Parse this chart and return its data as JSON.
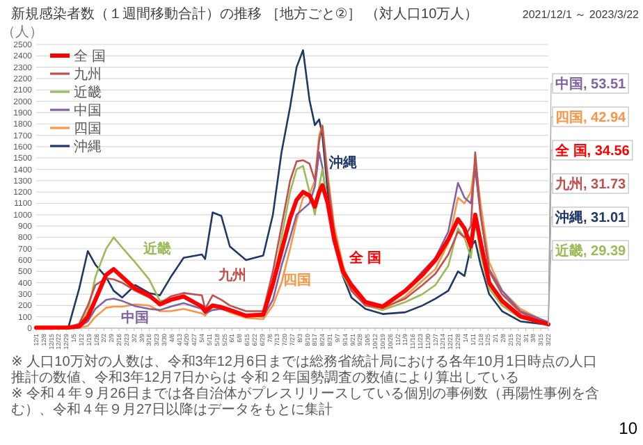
{
  "chart_data": {
    "type": "line",
    "title": "新規感染者数（１週間移動合計）の推移 ［地方ごと②］ （対人口10万人）",
    "subtitle": "2021/12/1 ～ 2023/3/22",
    "ylabel": "（人）",
    "x": [
      "2021-12-01",
      "2021-12-31",
      "2022-01-10",
      "2022-01-18",
      "2022-01-25",
      "2022-02-04",
      "2022-02-11",
      "2022-02-19",
      "2022-03-03",
      "2022-03-16",
      "2022-03-26",
      "2022-04-05",
      "2022-04-17",
      "2022-05-04",
      "2022-05-07",
      "2022-05-14",
      "2022-05-22",
      "2022-05-30",
      "2022-06-14",
      "2022-06-30",
      "2022-07-09",
      "2022-07-17",
      "2022-07-25",
      "2022-07-31",
      "2022-08-06",
      "2022-08-12",
      "2022-08-17",
      "2022-08-21",
      "2022-08-24",
      "2022-08-29",
      "2022-09-04",
      "2022-09-12",
      "2022-09-20",
      "2022-10-03",
      "2022-10-19",
      "2022-11-09",
      "2022-11-25",
      "2022-12-07",
      "2022-12-19",
      "2022-12-28",
      "2023-01-03",
      "2023-01-09",
      "2023-01-13",
      "2023-01-18",
      "2023-01-26",
      "2023-02-07",
      "2023-02-24",
      "2023-03-22"
    ],
    "series": [
      {
        "name": "全 国",
        "color": "#ff0000",
        "values": [
          5,
          6,
          15,
          100,
          250,
          470,
          520,
          450,
          350,
          290,
          210,
          250,
          280,
          190,
          150,
          200,
          185,
          160,
          110,
          120,
          390,
          680,
          970,
          1130,
          1200,
          1170,
          1070,
          1200,
          1260,
          1100,
          780,
          500,
          380,
          230,
          190,
          330,
          470,
          600,
          780,
          960,
          880,
          720,
          1000,
          760,
          400,
          240,
          105,
          34.56
        ]
      },
      {
        "name": "九州",
        "color": "#c0504d",
        "values": [
          5,
          8,
          40,
          200,
          380,
          440,
          430,
          400,
          330,
          270,
          220,
          280,
          310,
          290,
          170,
          290,
          250,
          200,
          150,
          150,
          500,
          900,
          1300,
          1470,
          1480,
          1450,
          1300,
          1650,
          1780,
          1300,
          850,
          520,
          330,
          200,
          180,
          260,
          380,
          480,
          650,
          850,
          800,
          900,
          1550,
          1000,
          500,
          300,
          140,
          31.73
        ]
      },
      {
        "name": "近畿",
        "color": "#9bbb59",
        "values": [
          5,
          5,
          20,
          150,
          450,
          700,
          800,
          710,
          580,
          430,
          240,
          250,
          270,
          200,
          150,
          210,
          190,
          160,
          110,
          100,
          350,
          800,
          1200,
          1400,
          1430,
          1200,
          1000,
          1250,
          1400,
          1100,
          760,
          470,
          330,
          210,
          160,
          230,
          300,
          380,
          550,
          880,
          800,
          620,
          970,
          650,
          350,
          200,
          90,
          29.39
        ]
      },
      {
        "name": "中国",
        "color": "#8064a2",
        "values": [
          5,
          5,
          10,
          60,
          170,
          250,
          260,
          240,
          195,
          170,
          160,
          190,
          220,
          170,
          130,
          160,
          170,
          150,
          120,
          100,
          250,
          550,
          800,
          1000,
          1050,
          1100,
          1250,
          1550,
          1420,
          1050,
          780,
          520,
          330,
          220,
          190,
          330,
          500,
          620,
          850,
          1280,
          1150,
          1100,
          1400,
          1000,
          520,
          330,
          150,
          53.51
        ]
      },
      {
        "name": "四国",
        "color": "#f79646",
        "values": [
          5,
          5,
          5,
          20,
          100,
          180,
          190,
          190,
          210,
          200,
          150,
          150,
          170,
          130,
          110,
          190,
          170,
          140,
          90,
          80,
          200,
          400,
          700,
          950,
          1150,
          1180,
          1300,
          1700,
          1790,
          1350,
          900,
          560,
          350,
          200,
          160,
          280,
          420,
          520,
          750,
          1150,
          1100,
          1200,
          1470,
          1100,
          580,
          330,
          170,
          42.94
        ]
      },
      {
        "name": "沖縄",
        "color": "#1f3864",
        "values": [
          8,
          10,
          350,
          680,
          560,
          450,
          330,
          270,
          380,
          310,
          290,
          450,
          620,
          650,
          610,
          1020,
          990,
          720,
          600,
          640,
          1000,
          1550,
          1950,
          2300,
          2450,
          2010,
          1790,
          1840,
          1700,
          1200,
          820,
          460,
          270,
          170,
          125,
          140,
          200,
          260,
          330,
          500,
          460,
          720,
          770,
          560,
          300,
          150,
          60,
          31.01
        ]
      }
    ],
    "xlim": [
      "2021-12-01",
      "2023-03-22"
    ],
    "ylim": [
      0,
      2500
    ],
    "yticks": [
      0,
      100,
      200,
      300,
      400,
      500,
      600,
      700,
      800,
      900,
      1000,
      1100,
      1200,
      1300,
      1400,
      1500,
      1600,
      1700,
      1800,
      1900,
      2000,
      2100,
      2200,
      2300,
      2400,
      2500
    ],
    "xticks": [
      {
        "value": "2021-12-01",
        "label": "12/1"
      },
      {
        "value": "2021-12-08",
        "label": "12/8"
      },
      {
        "value": "2021-12-15",
        "label": "12/15"
      },
      {
        "value": "2021-12-22",
        "label": "12/22"
      },
      {
        "value": "2021-12-29",
        "label": "12/29"
      },
      {
        "value": "2022-01-05",
        "label": "1/5"
      },
      {
        "value": "2022-01-12",
        "label": "1/12"
      },
      {
        "value": "2022-01-19",
        "label": "1/19"
      },
      {
        "value": "2022-01-26",
        "label": "1/26"
      },
      {
        "value": "2022-02-02",
        "label": "2/2"
      },
      {
        "value": "2022-02-09",
        "label": "2/9"
      },
      {
        "value": "2022-02-16",
        "label": "2/16"
      },
      {
        "value": "2022-02-23",
        "label": "2/23"
      },
      {
        "value": "2022-03-02",
        "label": "3/2"
      },
      {
        "value": "2022-03-09",
        "label": "3/9"
      },
      {
        "value": "2022-03-16",
        "label": "3/16"
      },
      {
        "value": "2022-03-23",
        "label": "3/23"
      },
      {
        "value": "2022-03-30",
        "label": "3/30"
      },
      {
        "value": "2022-04-06",
        "label": "4/6"
      },
      {
        "value": "2022-04-13",
        "label": "4/13"
      },
      {
        "value": "2022-04-20",
        "label": "4/20"
      },
      {
        "value": "2022-04-27",
        "label": "4/27"
      },
      {
        "value": "2022-05-04",
        "label": "5/4"
      },
      {
        "value": "2022-05-11",
        "label": "5/11"
      },
      {
        "value": "2022-05-18",
        "label": "5/18"
      },
      {
        "value": "2022-05-25",
        "label": "5/25"
      },
      {
        "value": "2022-06-01",
        "label": "6/1"
      },
      {
        "value": "2022-06-08",
        "label": "6/8"
      },
      {
        "value": "2022-06-15",
        "label": "6/15"
      },
      {
        "value": "2022-06-22",
        "label": "6/22"
      },
      {
        "value": "2022-06-29",
        "label": "6/29"
      },
      {
        "value": "2022-07-06",
        "label": "7/6"
      },
      {
        "value": "2022-07-13",
        "label": "7/13"
      },
      {
        "value": "2022-07-20",
        "label": "7/20"
      },
      {
        "value": "2022-07-27",
        "label": "7/27"
      },
      {
        "value": "2022-08-03",
        "label": "8/3"
      },
      {
        "value": "2022-08-10",
        "label": "8/10"
      },
      {
        "value": "2022-08-17",
        "label": "8/17"
      },
      {
        "value": "2022-08-24",
        "label": "8/24"
      },
      {
        "value": "2022-08-31",
        "label": "8/31"
      },
      {
        "value": "2022-09-07",
        "label": "9/7"
      },
      {
        "value": "2022-09-14",
        "label": "9/14"
      },
      {
        "value": "2022-09-21",
        "label": "9/21"
      },
      {
        "value": "2022-09-28",
        "label": "9/28"
      },
      {
        "value": "2022-10-05",
        "label": "10/5"
      },
      {
        "value": "2022-10-12",
        "label": "10/12"
      },
      {
        "value": "2022-10-19",
        "label": "10/19"
      },
      {
        "value": "2022-10-26",
        "label": "10/26"
      },
      {
        "value": "2022-11-02",
        "label": "11/2"
      },
      {
        "value": "2022-11-09",
        "label": "11/9"
      },
      {
        "value": "2022-11-16",
        "label": "11/16"
      },
      {
        "value": "2022-11-23",
        "label": "11/23"
      },
      {
        "value": "2022-11-30",
        "label": "11/30"
      },
      {
        "value": "2022-12-07",
        "label": "12/7"
      },
      {
        "value": "2022-12-14",
        "label": "12/14"
      },
      {
        "value": "2022-12-21",
        "label": "12/21"
      },
      {
        "value": "2022-12-28",
        "label": "12/28"
      },
      {
        "value": "2023-01-04",
        "label": "1/4"
      },
      {
        "value": "2023-01-11",
        "label": "1/11"
      },
      {
        "value": "2023-01-18",
        "label": "1/18"
      },
      {
        "value": "2023-01-25",
        "label": "1/25"
      },
      {
        "value": "2023-02-01",
        "label": "2/1"
      },
      {
        "value": "2023-02-08",
        "label": "2/8"
      },
      {
        "value": "2023-02-15",
        "label": "2/15"
      },
      {
        "value": "2023-02-22",
        "label": "2/22"
      },
      {
        "value": "2023-03-01",
        "label": "3/1"
      },
      {
        "value": "2023-03-08",
        "label": "3/8"
      },
      {
        "value": "2023-03-15",
        "label": "3/15"
      },
      {
        "value": "2023-03-22",
        "label": "3/22"
      }
    ],
    "grid": "y",
    "legend": "top left",
    "line_style": "solid",
    "marker": "none",
    "annotations": [
      {
        "text": "中国, 53.51",
        "x": "2023-03-22",
        "y": 53.51
      },
      {
        "text": "四国, 42.94",
        "x": "2023-03-22",
        "y": 42.94
      },
      {
        "text": "全 国, 34.56",
        "x": "2023-03-22",
        "y": 34.56
      },
      {
        "text": "九州, 31.73",
        "x": "2023-03-22",
        "y": 31.73
      },
      {
        "text": "沖縄, 31.01",
        "x": "2023-03-22",
        "y": 31.01
      },
      {
        "text": "近畿, 29.39",
        "x": "2023-03-22",
        "y": 29.39
      },
      "※ 人口10万対の人数は、令和3年12月6日までは総務省統計局における各年10月1日時点の人口推計の数値、令和3年12月7日からは 令和２年国勢調査の数値により算出している",
      "※ 令和４年９月26日までは各自治体がプレスリリースしている個別の事例数（再陽性事例を含む）、令和４年９月27日以降はデータをもとに集計",
      "10"
    ]
  }
}
